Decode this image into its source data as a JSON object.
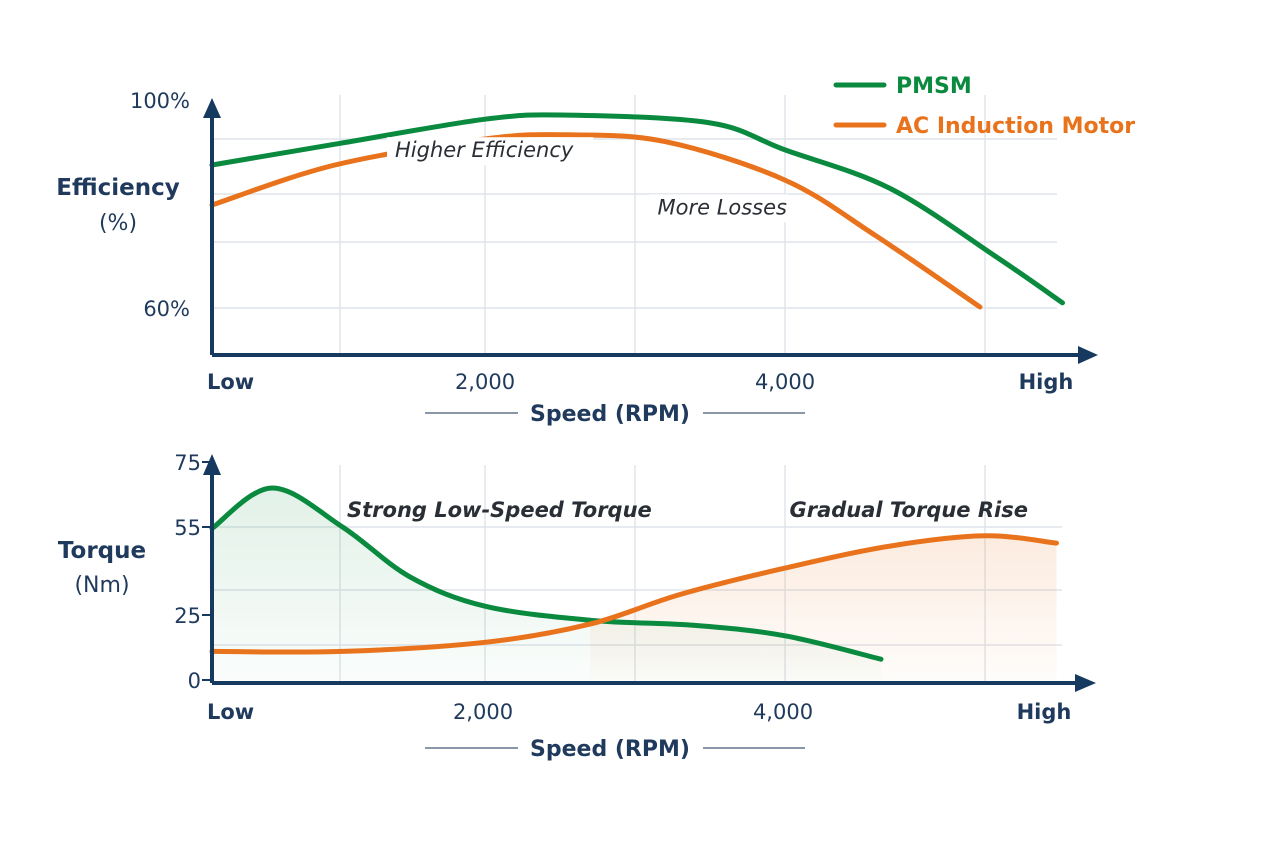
{
  "chart_data": [
    {
      "type": "line",
      "title": "",
      "xlabel": "Speed (RPM)",
      "ylabel": "Efficiency",
      "ylabel_unit": "(%)",
      "x_tick_labels": [
        {
          "value": 180,
          "label": "Low"
        },
        {
          "value": 2000,
          "label": "2,000"
        },
        {
          "value": 4000,
          "label": "4,000"
        },
        {
          "value": 5740,
          "label": "High"
        }
      ],
      "y_tick_labels": [
        {
          "value": 100,
          "label": "100%"
        },
        {
          "value": 60,
          "label": "60%"
        }
      ],
      "xlim": [
        180,
        5900
      ],
      "ylim": [
        51,
        100
      ],
      "grid": true,
      "legend": {
        "placement": "top-right",
        "entries": [
          {
            "name": "PMSM",
            "color": "#0a8a3f"
          },
          {
            "name": "AC Induction Motor",
            "color": "#e8731c"
          }
        ]
      },
      "series": [
        {
          "name": "PMSM",
          "color": "#0a8a3f",
          "x": [
            180,
            1000,
            2000,
            2550,
            3500,
            4000,
            4700,
            5400,
            5850
          ],
          "y": [
            87.5,
            91.5,
            96.3,
            97.1,
            95.6,
            90.4,
            83.0,
            70.0,
            61.0
          ]
        },
        {
          "name": "AC Induction Motor",
          "color": "#e8731c",
          "x": [
            180,
            1000,
            2000,
            2550,
            3200,
            4000,
            4600,
            5300
          ],
          "y": [
            79.8,
            87.5,
            92.5,
            93.3,
            92.0,
            84.6,
            74.0,
            60.2
          ]
        }
      ],
      "annotations": [
        {
          "text": "Higher Efficiency",
          "x": 1400,
          "y": 89,
          "color": "#2a2f36"
        },
        {
          "text": "More Losses",
          "x": 3150,
          "y": 78,
          "color": "#2a2f36"
        }
      ]
    },
    {
      "type": "area",
      "title": "",
      "xlabel": "Speed (RPM)",
      "ylabel": "Torque",
      "ylabel_unit": "(Nm)",
      "x_tick_labels": [
        {
          "value": 180,
          "label": "Low"
        },
        {
          "value": 2000,
          "label": "2,000"
        },
        {
          "value": 4000,
          "label": "4,000"
        },
        {
          "value": 5740,
          "label": "High"
        }
      ],
      "y_tick_labels": [
        {
          "value": 75,
          "label": "75"
        },
        {
          "value": 55,
          "label": "55"
        },
        {
          "value": 25,
          "label": "25"
        },
        {
          "value": 0,
          "label": "0"
        }
      ],
      "xlim": [
        180,
        5900
      ],
      "ylim": [
        0,
        75
      ],
      "grid": true,
      "series": [
        {
          "name": "PMSM",
          "color": "#0a8a3f",
          "x": [
            180,
            580,
            1050,
            1500,
            2000,
            2700,
            3400,
            4000,
            4640
          ],
          "y": [
            54.5,
            67.0,
            55.0,
            38.0,
            28.0,
            23.0,
            21.0,
            17.0,
            8.0
          ]
        },
        {
          "name": "AC Induction Motor",
          "color": "#e8731c",
          "x": [
            180,
            1050,
            2000,
            2700,
            3300,
            4000,
            4700,
            5330,
            5810
          ],
          "y": [
            11.0,
            11.0,
            14.5,
            21.5,
            32.0,
            41.0,
            48.5,
            52.0,
            49.5
          ]
        }
      ],
      "annotations": [
        {
          "text": "Strong Low-Speed Torque",
          "x": 1080,
          "y": 63,
          "color": "#0a8a3f"
        },
        {
          "text": "Gradual Torque Rise",
          "x": 4030,
          "y": 63,
          "color": "#e8731c"
        }
      ]
    }
  ]
}
